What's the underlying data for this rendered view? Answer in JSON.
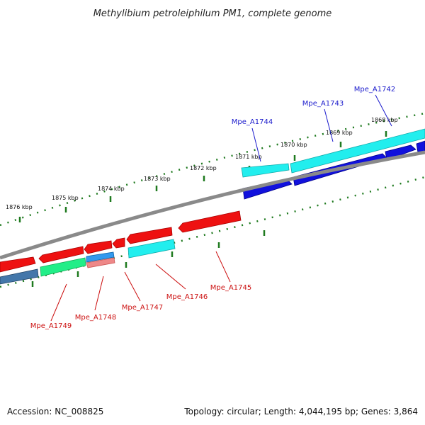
{
  "title": "Methylibium petroleiphilum PM1, complete genome",
  "accession": "Accession: NC_008825",
  "summary": "Topology: circular; Length: 4,044,195 bp; Genes: 3,864",
  "colors": {
    "forward_label": "#1a1acc",
    "reverse_label": "#cc1111",
    "backbone": "#8a8a8a",
    "ticks": "#1f7a1f",
    "red": "#ee1111",
    "cyan": "#22eeee",
    "blue": "#1111dd",
    "green": "#22ee88",
    "steelblue": "#4477aa",
    "lightblue": "#3399ee",
    "salmon": "#ee8888"
  },
  "scale_labels": [
    "1876 kbp",
    "1875 kbp",
    "1874 kbp",
    "1873 kbp",
    "1872 kbp",
    "1871 kbp",
    "1870 kbp",
    "1869 kbp",
    "1868 kbp"
  ],
  "genes_forward": [
    "Mpe_A1744",
    "Mpe_A1743",
    "Mpe_A1742"
  ],
  "genes_reverse": [
    "Mpe_A1745",
    "Mpe_A1746",
    "Mpe_A1747",
    "Mpe_A1748",
    "Mpe_A1749"
  ]
}
